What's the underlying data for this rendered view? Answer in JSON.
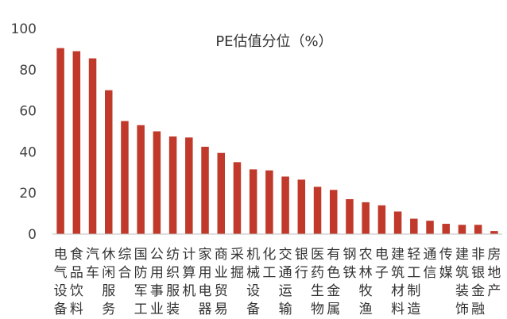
{
  "colors": {
    "bar": "#C0392B",
    "axis": "#BFBFBF",
    "text": "#333333"
  },
  "chart_data": {
    "type": "bar",
    "title": "PE估值分位（%）",
    "xlabel": "",
    "ylabel": "",
    "ylim": [
      0,
      100
    ],
    "yticks": [
      0,
      20,
      40,
      60,
      80,
      100
    ],
    "grid": false,
    "categories": [
      "电气设备",
      "食品饮料",
      "汽车",
      "休闲服务",
      "综合",
      "国防军工",
      "公用事业",
      "纺织服装",
      "计算机",
      "家用电器",
      "商业贸易",
      "采掘",
      "机械设备",
      "化工",
      "交通运输",
      "银行",
      "医药生物",
      "有色金属",
      "钢铁",
      "农林牧渔",
      "电子",
      "建筑材料",
      "轻工制造",
      "通信",
      "传媒",
      "建筑装饰",
      "非银金融",
      "房地产"
    ],
    "labels": [
      [
        "电",
        "气",
        "设",
        "备"
      ],
      [
        "食",
        "品",
        "饮",
        "料"
      ],
      [
        "汽",
        "车"
      ],
      [
        "休",
        "闲",
        "服",
        "务"
      ],
      [
        "综",
        "合"
      ],
      [
        "国",
        "防",
        "军",
        "工"
      ],
      [
        "公",
        "用",
        "事",
        "业"
      ],
      [
        "纺",
        "织",
        "服",
        "装"
      ],
      [
        "计",
        "算",
        "机"
      ],
      [
        "家",
        "用",
        "电",
        "器"
      ],
      [
        "商",
        "业",
        "贸",
        "易"
      ],
      [
        "采",
        "掘"
      ],
      [
        "机",
        "械",
        "设",
        "备"
      ],
      [
        "化",
        "工"
      ],
      [
        "交",
        "通",
        "运",
        "输"
      ],
      [
        "银",
        "行"
      ],
      [
        "医",
        "药",
        "生",
        "物"
      ],
      [
        "有",
        "色",
        "金",
        "属"
      ],
      [
        "钢",
        "铁"
      ],
      [
        "农",
        "林",
        "牧",
        "渔"
      ],
      [
        "电",
        "子"
      ],
      [
        "建",
        "筑",
        "材",
        "料"
      ],
      [
        "轻",
        "工",
        "制",
        "造"
      ],
      [
        "通",
        "信"
      ],
      [
        "传",
        "媒"
      ],
      [
        "建",
        "筑",
        "装",
        "饰"
      ],
      [
        "非",
        "银",
        "金",
        "融"
      ],
      [
        "房",
        "地",
        "产"
      ]
    ],
    "values": [
      90.5,
      89,
      85.5,
      70,
      55,
      53,
      50,
      47.5,
      47,
      42.5,
      39.5,
      35,
      31.5,
      31,
      28,
      26.5,
      23,
      21.5,
      17,
      15.5,
      14,
      11,
      7.5,
      6.5,
      5,
      4.5,
      4.5,
      1.5
    ]
  }
}
